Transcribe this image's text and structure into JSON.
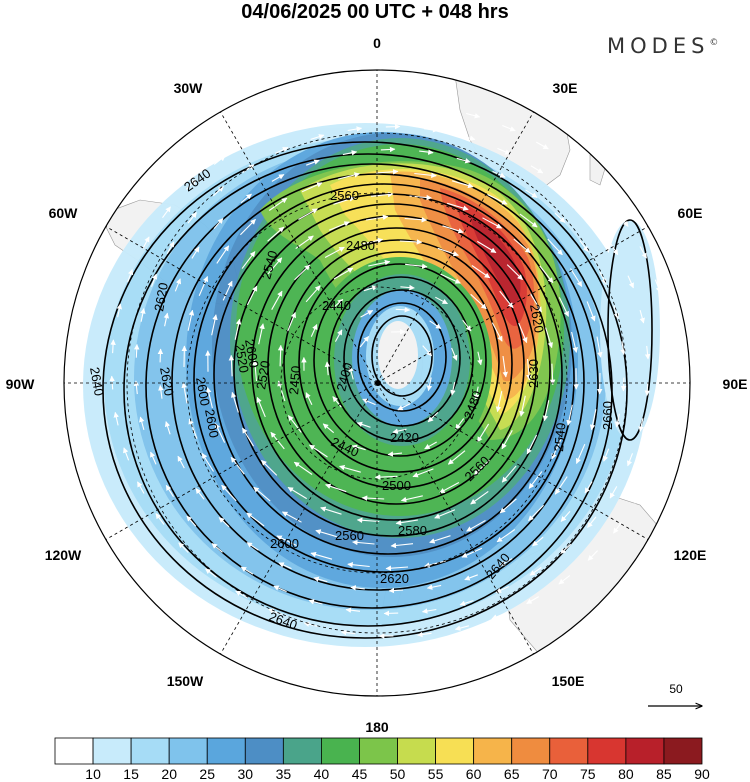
{
  "header": {
    "title": "04/06/2025  00 UTC  + 048 hrs",
    "brand": "MODES",
    "brand_mark": "©"
  },
  "map": {
    "projection": "south polar stereographic",
    "longitude_labels": [
      "0",
      "30E",
      "60E",
      "90E",
      "120E",
      "150E",
      "180",
      "150W",
      "120W",
      "90W",
      "60W",
      "30W"
    ],
    "contour_labels": [
      "2640",
      "2560",
      "2480",
      "2620",
      "2540",
      "2520",
      "2440",
      "2400",
      "2600",
      "2620",
      "2640",
      "2600",
      "2520",
      "2450",
      "2440",
      "2420",
      "2480",
      "2560",
      "2500",
      "2580",
      "2560",
      "2600",
      "2620",
      "2640",
      "2640",
      "2660",
      "2620",
      "2630",
      "2540",
      "2600"
    ],
    "reference_vector": "50",
    "colors": {
      "land": "#f2f2f2",
      "contour": "#000000",
      "vector": "#ffffff"
    }
  },
  "colorbar": {
    "labels": [
      "10",
      "15",
      "20",
      "25",
      "30",
      "35",
      "40",
      "45",
      "50",
      "55",
      "60",
      "65",
      "70",
      "75",
      "80",
      "85",
      "90"
    ],
    "colors": [
      "#ffffff",
      "#c8ebfb",
      "#a6dcf6",
      "#7fc3ec",
      "#5aa6dd",
      "#4d8ec5",
      "#4aa48a",
      "#49b34f",
      "#7cc54a",
      "#c6dc4e",
      "#f7df54",
      "#f6b44a",
      "#ef8c3f",
      "#e9603a",
      "#d83630",
      "#b8202a",
      "#8b1a1f"
    ]
  }
}
